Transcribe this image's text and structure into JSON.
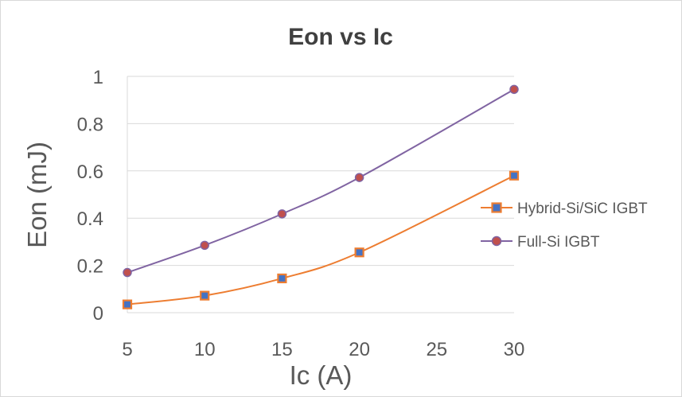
{
  "chart_data": {
    "type": "line",
    "title": "Eon vs Ic",
    "xlabel": "Ic (A)",
    "ylabel": "Eon (mJ)",
    "xlim": [
      5,
      30
    ],
    "ylim": [
      0,
      1
    ],
    "x_ticks": [
      "5",
      "10",
      "15",
      "20",
      "25",
      "30"
    ],
    "y_ticks": [
      "0",
      "0.2",
      "0.4",
      "0.6",
      "0.8",
      "1"
    ],
    "grid": "horizontal",
    "legend_position": "right",
    "series": [
      {
        "name": "Hybrid-Si/SiC IGBT",
        "marker": "square",
        "line_color": "#ed7d31",
        "marker_fill": "#4472c4",
        "marker_edge": "#ed7d31",
        "x": [
          5,
          10,
          15,
          20,
          30
        ],
        "y": [
          0.035,
          0.072,
          0.145,
          0.255,
          0.58
        ]
      },
      {
        "name": "Full-Si IGBT",
        "marker": "circle",
        "line_color": "#8064a2",
        "marker_fill": "#c0504d",
        "marker_edge": "#8064a2",
        "x": [
          5,
          10,
          15,
          20,
          30
        ],
        "y": [
          0.17,
          0.285,
          0.418,
          0.572,
          0.945
        ]
      }
    ]
  }
}
